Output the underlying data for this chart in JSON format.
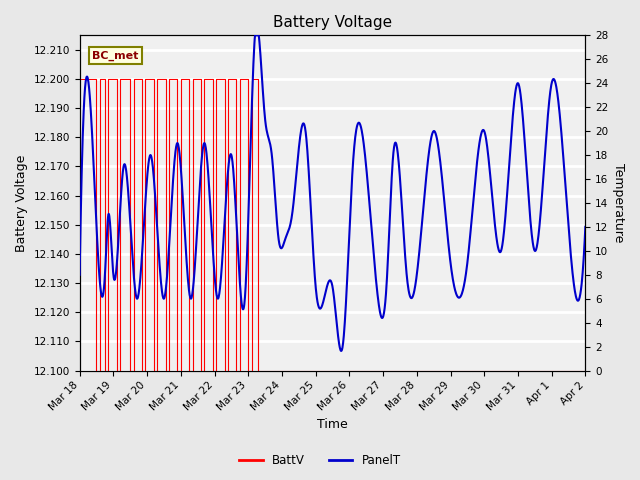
{
  "title": "Battery Voltage",
  "xlabel": "Time",
  "ylabel_left": "Battery Voltage",
  "ylabel_right": "Temperature",
  "annotation_text": "BC_met",
  "ylim_left": [
    12.1,
    12.215
  ],
  "ylim_right": [
    0,
    28
  ],
  "yticks_left": [
    12.1,
    12.11,
    12.12,
    12.13,
    12.14,
    12.15,
    12.16,
    12.17,
    12.18,
    12.19,
    12.2,
    12.21
  ],
  "yticks_right": [
    0,
    2,
    4,
    6,
    8,
    10,
    12,
    14,
    16,
    18,
    20,
    22,
    24,
    26,
    28
  ],
  "batt_color": "#FF0000",
  "panel_color": "#0000CC",
  "plot_bg_color": "#F0F0F0",
  "legend_batt": "BattV",
  "legend_panel": "PanelT",
  "title_fontsize": 11,
  "axis_label_fontsize": 9,
  "tick_fontsize": 7.5
}
